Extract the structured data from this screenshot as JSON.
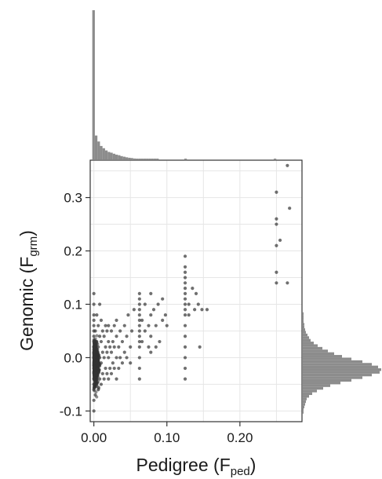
{
  "chart_data": {
    "type": "scatter",
    "xlabel": {
      "main": "Pedigree ",
      "paren_open": "(",
      "var": "F",
      "sub": "ped",
      "paren_close": ")"
    },
    "ylabel": {
      "main": "Genomic ",
      "paren_open": "(",
      "var": "F",
      "sub": "grm",
      "paren_close": ")"
    },
    "xlim": [
      -0.005,
      0.285
    ],
    "ylim": [
      -0.12,
      0.37
    ],
    "x_ticks": [
      0.0,
      0.1,
      0.2
    ],
    "x_tick_labels": [
      "0.00",
      "0.10",
      "0.20"
    ],
    "y_ticks": [
      -0.1,
      0.0,
      0.1,
      0.2,
      0.3
    ],
    "y_tick_labels": [
      "-0.1",
      "0.0",
      "0.1",
      "0.2",
      "0.3"
    ],
    "grid": true,
    "point_color": "#333333",
    "hist_color": "#8c8c8c",
    "points": [
      [
        0,
        -0.1
      ],
      [
        0,
        -0.08
      ],
      [
        0,
        -0.06
      ],
      [
        0,
        -0.05
      ],
      [
        0,
        -0.04
      ],
      [
        0,
        -0.03
      ],
      [
        0,
        -0.02
      ],
      [
        0,
        -0.01
      ],
      [
        0,
        0
      ],
      [
        0,
        0.01
      ],
      [
        0,
        0.02
      ],
      [
        0,
        0.03
      ],
      [
        0,
        0.04
      ],
      [
        0,
        0.05
      ],
      [
        0,
        0.06
      ],
      [
        0,
        0.07
      ],
      [
        0,
        0.08
      ],
      [
        0,
        0.1
      ],
      [
        0,
        0.12
      ],
      [
        0.002,
        -0.07
      ],
      [
        0.002,
        -0.03
      ],
      [
        0.002,
        0.01
      ],
      [
        0.002,
        0.05
      ],
      [
        0.004,
        -0.05
      ],
      [
        0.004,
        -0.01
      ],
      [
        0.004,
        0.03
      ],
      [
        0.004,
        0.08
      ],
      [
        0.006,
        -0.06
      ],
      [
        0.006,
        -0.02
      ],
      [
        0.006,
        0.02
      ],
      [
        0.006,
        0.06
      ],
      [
        0.008,
        -0.04
      ],
      [
        0.008,
        0
      ],
      [
        0.008,
        0.04
      ],
      [
        0.008,
        0.1
      ],
      [
        0.01,
        -0.05
      ],
      [
        0.01,
        -0.01
      ],
      [
        0.01,
        0.03
      ],
      [
        0.01,
        0.07
      ],
      [
        0.012,
        -0.03
      ],
      [
        0.012,
        0.01
      ],
      [
        0.012,
        0.05
      ],
      [
        0.014,
        -0.04
      ],
      [
        0.014,
        0
      ],
      [
        0.014,
        0.04
      ],
      [
        0.016,
        -0.02
      ],
      [
        0.016,
        0.02
      ],
      [
        0.016,
        0.06
      ],
      [
        0.018,
        -0.03
      ],
      [
        0.018,
        0.01
      ],
      [
        0.018,
        0.05
      ],
      [
        0.02,
        -0.04
      ],
      [
        0.02,
        0
      ],
      [
        0.02,
        0.03
      ],
      [
        0.02,
        0.06
      ],
      [
        0.022,
        -0.02
      ],
      [
        0.022,
        0.02
      ],
      [
        0.024,
        -0.03
      ],
      [
        0.024,
        0.01
      ],
      [
        0.024,
        0.05
      ],
      [
        0.026,
        -0.01
      ],
      [
        0.026,
        0.03
      ],
      [
        0.028,
        -0.02
      ],
      [
        0.028,
        0.02
      ],
      [
        0.028,
        0.06
      ],
      [
        0.031,
        -0.04
      ],
      [
        0.031,
        0
      ],
      [
        0.031,
        0.04
      ],
      [
        0.031,
        0.07
      ],
      [
        0.034,
        -0.02
      ],
      [
        0.034,
        0.02
      ],
      [
        0.036,
        0
      ],
      [
        0.036,
        0.05
      ],
      [
        0.039,
        -0.01
      ],
      [
        0.039,
        0.03
      ],
      [
        0.042,
        0.01
      ],
      [
        0.042,
        0.06
      ],
      [
        0.045,
        0
      ],
      [
        0.045,
        0.04
      ],
      [
        0.047,
        0.08
      ],
      [
        0.05,
        -0.01
      ],
      [
        0.05,
        0.02
      ],
      [
        0.052,
        0.05
      ],
      [
        0.055,
        0.09
      ],
      [
        0.0625,
        -0.04
      ],
      [
        0.0625,
        -0.02
      ],
      [
        0.0625,
        0
      ],
      [
        0.0625,
        0.02
      ],
      [
        0.0625,
        0.03
      ],
      [
        0.0625,
        0.04
      ],
      [
        0.0625,
        0.05
      ],
      [
        0.0625,
        0.06
      ],
      [
        0.0625,
        0.07
      ],
      [
        0.0625,
        0.08
      ],
      [
        0.0625,
        0.09
      ],
      [
        0.0625,
        0.1
      ],
      [
        0.0625,
        0.11
      ],
      [
        0.0625,
        0.12
      ],
      [
        0.066,
        0.03
      ],
      [
        0.066,
        0.07
      ],
      [
        0.07,
        0.05
      ],
      [
        0.07,
        0.1
      ],
      [
        0.075,
        0.02
      ],
      [
        0.075,
        0.06
      ],
      [
        0.078,
        0.01
      ],
      [
        0.078,
        0.04
      ],
      [
        0.078,
        0.08
      ],
      [
        0.078,
        0.12
      ],
      [
        0.082,
        0.09
      ],
      [
        0.085,
        0.02
      ],
      [
        0.085,
        0.06
      ],
      [
        0.088,
        0.1
      ],
      [
        0.09,
        0.03
      ],
      [
        0.094,
        0.07
      ],
      [
        0.094,
        0.11
      ],
      [
        0.098,
        0.08
      ],
      [
        0.1,
        0.06
      ],
      [
        0.125,
        -0.04
      ],
      [
        0.125,
        -0.02
      ],
      [
        0.125,
        0
      ],
      [
        0.125,
        0.02
      ],
      [
        0.125,
        0.04
      ],
      [
        0.125,
        0.06
      ],
      [
        0.125,
        0.08
      ],
      [
        0.125,
        0.09
      ],
      [
        0.125,
        0.1
      ],
      [
        0.125,
        0.11
      ],
      [
        0.125,
        0.12
      ],
      [
        0.125,
        0.13
      ],
      [
        0.125,
        0.14
      ],
      [
        0.125,
        0.15
      ],
      [
        0.125,
        0.16
      ],
      [
        0.125,
        0.17
      ],
      [
        0.125,
        0.19
      ],
      [
        0.13,
        0.08
      ],
      [
        0.13,
        0.1
      ],
      [
        0.135,
        0.13
      ],
      [
        0.138,
        0.09
      ],
      [
        0.14,
        0.12
      ],
      [
        0.143,
        0.1
      ],
      [
        0.145,
        0.02
      ],
      [
        0.148,
        0.09
      ],
      [
        0.155,
        0.09
      ],
      [
        0.25,
        0.14
      ],
      [
        0.25,
        0.16
      ],
      [
        0.25,
        0.21
      ],
      [
        0.25,
        0.25
      ],
      [
        0.25,
        0.26
      ],
      [
        0.25,
        0.31
      ],
      [
        0.255,
        0.22
      ],
      [
        0.265,
        0.14
      ],
      [
        0.268,
        0.28
      ],
      [
        0.265,
        0.36
      ]
    ],
    "x_hist": {
      "bin_width": 0.0035,
      "start": 0,
      "counts": [
        1000,
        160,
        120,
        90,
        75,
        60,
        50,
        45,
        38,
        32,
        28,
        22,
        18,
        14,
        11,
        9,
        6,
        4,
        3,
        2,
        2,
        1,
        1,
        1,
        1,
        1,
        0,
        0,
        0,
        0,
        0,
        0,
        0,
        0,
        0,
        0,
        5,
        0,
        0,
        0,
        0,
        0,
        0,
        0,
        0,
        0,
        0,
        0,
        0,
        0,
        0,
        0,
        0,
        0,
        0,
        0,
        0,
        0,
        0,
        0,
        0,
        0,
        0,
        0,
        0,
        0,
        0,
        0,
        0,
        0,
        0,
        3
      ]
    },
    "y_hist": {
      "bin_width": 0.005,
      "start": -0.105,
      "counts": [
        1,
        1,
        2,
        3,
        4,
        5,
        8,
        12,
        18,
        26,
        35,
        48,
        62,
        76,
        88,
        98,
        100,
        96,
        88,
        76,
        62,
        50,
        40,
        32,
        25,
        19,
        14,
        10,
        8,
        6,
        4,
        3,
        2,
        2,
        1,
        1,
        1,
        1
      ]
    }
  }
}
